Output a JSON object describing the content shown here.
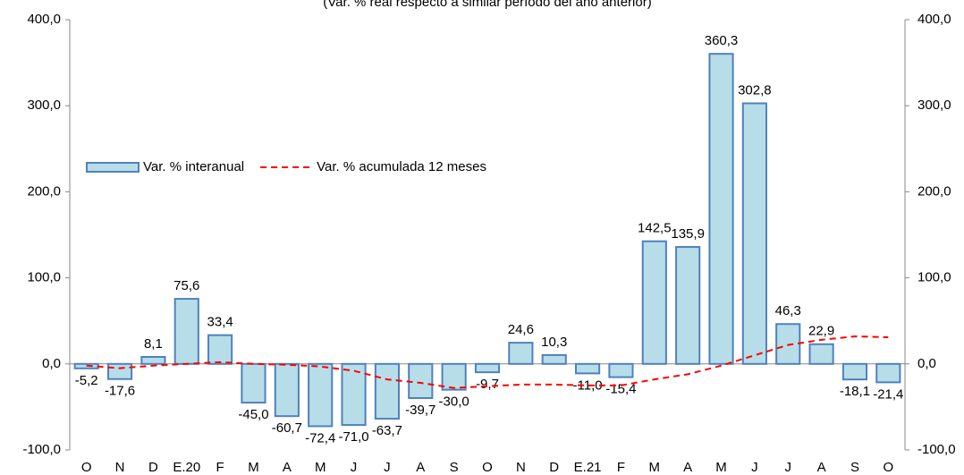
{
  "chart_data": {
    "type": "bar",
    "subtitle": "(Var. % real respecto a similar período del año anterior)",
    "categories": [
      "O",
      "N",
      "D",
      "E.20",
      "F",
      "M",
      "A",
      "M",
      "J",
      "J",
      "A",
      "S",
      "O",
      "N",
      "D",
      "E.21",
      "F",
      "M",
      "A",
      "M",
      "J",
      "J",
      "A",
      "S",
      "O"
    ],
    "series": [
      {
        "name": "Var. % interanual",
        "type": "bar",
        "color": "#b7dee8",
        "edge_color": "#4f81bd",
        "values": [
          -5.2,
          -17.6,
          8.1,
          75.6,
          33.4,
          -45.0,
          -60.7,
          -72.4,
          -71.0,
          -63.7,
          -39.7,
          -30.0,
          -9.7,
          24.6,
          10.3,
          -11.0,
          -15.4,
          142.5,
          135.9,
          360.3,
          302.8,
          46.3,
          22.9,
          -18.1,
          -21.4
        ],
        "value_labels": [
          "-5,2",
          "-17,6",
          "8,1",
          "75,6",
          "33,4",
          "-45,0",
          "-60,7",
          "-72,4",
          "-71,0",
          "-63,7",
          "-39,7",
          "-30,0",
          "-9,7",
          "24,6",
          "10,3",
          "-11,0",
          "-15,4",
          "142,5",
          "135,9",
          "360,3",
          "302,8",
          "46,3",
          "22,9",
          "-18,1",
          "-21,4"
        ]
      },
      {
        "name": "Var. % acumulada 12 meses",
        "type": "line",
        "color": "#ff0000",
        "dashed": true,
        "values": [
          -2,
          -5,
          -2,
          0,
          2,
          0,
          -1,
          -3,
          -8,
          -18,
          -22,
          -28,
          -26,
          -24,
          -24,
          -25,
          -25,
          -18,
          -12,
          -2,
          10,
          22,
          28,
          32,
          31
        ]
      }
    ],
    "ylim": [
      -100,
      400
    ],
    "yticks": [
      {
        "value": -100,
        "label": "-100,0"
      },
      {
        "value": 0,
        "label": "0,0"
      },
      {
        "value": 100,
        "label": "100,0"
      },
      {
        "value": 200,
        "label": "200,0"
      },
      {
        "value": 300,
        "label": "300,0"
      },
      {
        "value": 400,
        "label": "400,0"
      }
    ],
    "y2lim": [
      -100,
      400
    ],
    "y2ticks": [
      {
        "value": -100,
        "label": "-100,0"
      },
      {
        "value": 0,
        "label": "0,0"
      },
      {
        "value": 100,
        "label": "100,0"
      },
      {
        "value": 200,
        "label": "200,0"
      },
      {
        "value": 300,
        "label": "300,0"
      },
      {
        "value": 400,
        "label": "400,0"
      }
    ],
    "legend": "upper left"
  }
}
